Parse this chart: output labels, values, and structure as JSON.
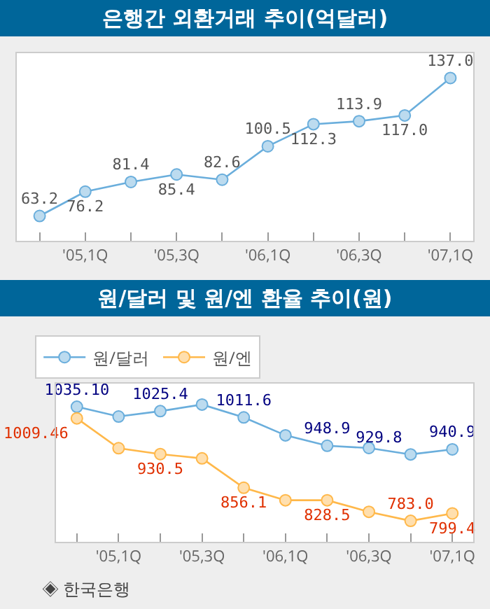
{
  "chart_data": [
    {
      "type": "line",
      "title": "은행간 외환거래 추이(억달러)",
      "categories": [
        null,
        "'05,1Q",
        null,
        "'05,3Q",
        null,
        "'06,1Q",
        null,
        "'06,3Q",
        null,
        "'07,1Q"
      ],
      "series": [
        {
          "color": "#6aaedc",
          "values": [
            63.2,
            76.2,
            81.4,
            85.4,
            82.6,
            100.5,
            112.3,
            113.9,
            117.0,
            137.0
          ],
          "value_labels": [
            "63.2",
            "76.2",
            "81.4",
            "85.4",
            "82.6",
            "100.5",
            "112.3",
            "113.9",
            "117.0",
            "137.0"
          ]
        }
      ],
      "marker": "circle",
      "grid": false,
      "legend": false
    },
    {
      "type": "line",
      "title": "원/달러 및 원/엔 환율 추이(원)",
      "categories": [
        null,
        "'05,1Q",
        null,
        "'05,3Q",
        null,
        "'06,1Q",
        null,
        "'06,3Q",
        null,
        "'07,1Q"
      ],
      "series": [
        {
          "name": "원/달러",
          "color": "#6aaedc",
          "values": [
            1035.1,
            1013.5,
            1025.4,
            1040,
            1011.6,
            972,
            948.9,
            944,
            929.8,
            940.9
          ],
          "value_labels": [
            "1035.10",
            null,
            "1025.4",
            null,
            "1011.6",
            null,
            "948.9",
            null,
            "929.8",
            "940.9"
          ]
        },
        {
          "name": "원/엔",
          "color": "#ffb84a",
          "values": [
            1009.46,
            943.5,
            930.5,
            921,
            856.1,
            828.5,
            828.5,
            803,
            783.0,
            799.4
          ],
          "value_labels": [
            "1009.46",
            null,
            "930.5",
            null,
            "856.1",
            null,
            "828.5",
            null,
            "783.0",
            "799.4"
          ]
        }
      ],
      "marker": "circle",
      "grid": false,
      "legend": "top left",
      "annotations": [
        "◈ 한국은행"
      ]
    }
  ]
}
